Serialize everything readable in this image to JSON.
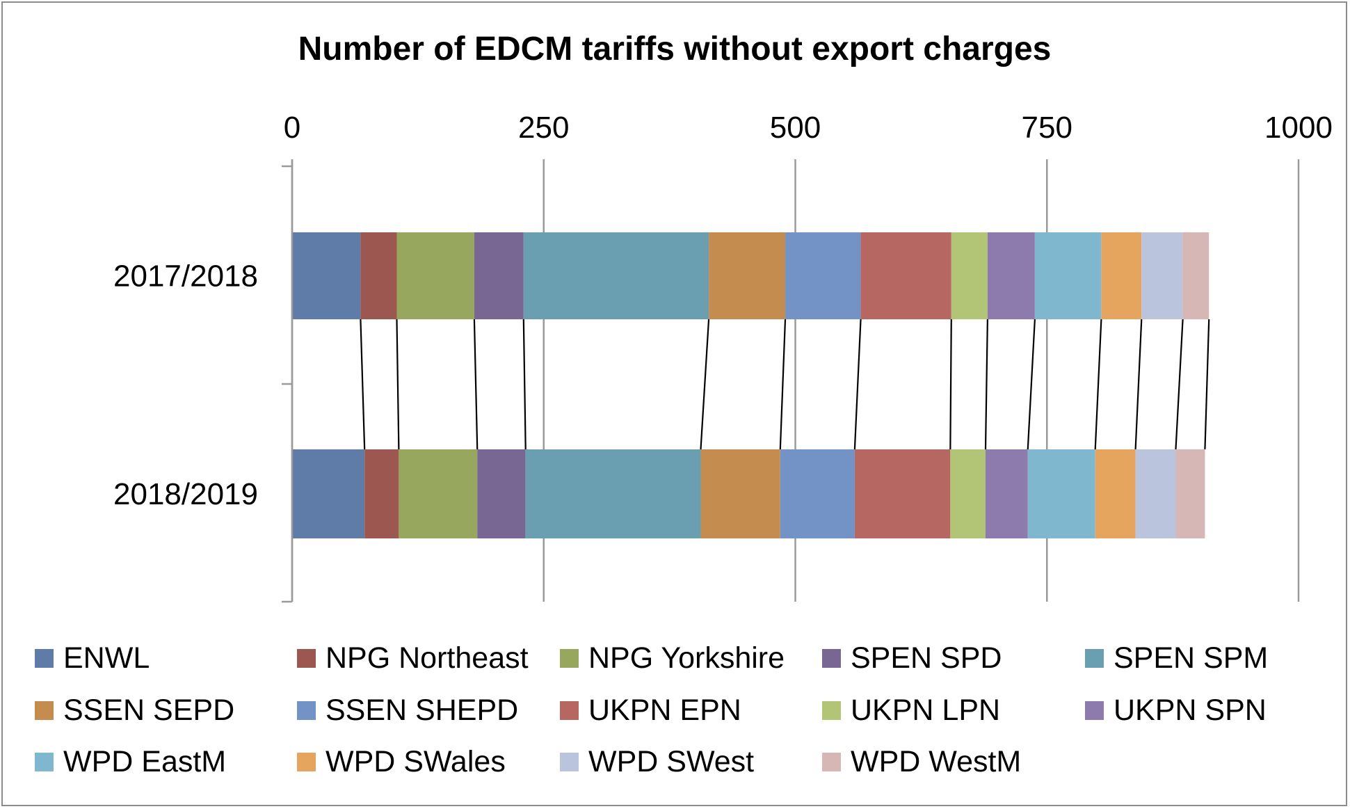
{
  "chart_data": {
    "type": "bar",
    "orientation": "horizontal",
    "stacked": true,
    "title": "Number of EDCM tariffs without export charges",
    "xlabel": "",
    "ylabel": "",
    "xlim": [
      0,
      1000
    ],
    "x_ticks": [
      "0",
      "250",
      "500",
      "750",
      "1000"
    ],
    "x_axis_position": "top",
    "grid": true,
    "series_lines": true,
    "legend_position": "bottom",
    "categories": [
      "2017/2018",
      "2018/2019"
    ],
    "series": [
      {
        "name": "ENWL",
        "color": "#5f7ba8",
        "values": [
          68,
          72
        ]
      },
      {
        "name": "NPG Northeast",
        "color": "#9c5850",
        "values": [
          36,
          34
        ]
      },
      {
        "name": "NPG Yorkshire",
        "color": "#97a75e",
        "values": [
          77,
          78
        ]
      },
      {
        "name": "SPEN SPD",
        "color": "#786792",
        "values": [
          49,
          48
        ]
      },
      {
        "name": "SPEN SPM",
        "color": "#6a9eb1",
        "values": [
          184,
          174
        ]
      },
      {
        "name": "SSEN SEPD",
        "color": "#c48c4e",
        "values": [
          76,
          79
        ]
      },
      {
        "name": "SSEN SHEPD",
        "color": "#7393c7",
        "values": [
          75,
          74
        ]
      },
      {
        "name": "UKPN EPN",
        "color": "#b66762",
        "values": [
          90,
          95
        ]
      },
      {
        "name": "UKPN LPN",
        "color": "#b2c475",
        "values": [
          36,
          35
        ]
      },
      {
        "name": "UKPN SPN",
        "color": "#8d7bae",
        "values": [
          47,
          42
        ]
      },
      {
        "name": "WPD EastM",
        "color": "#7fb8ce",
        "values": [
          66,
          67
        ]
      },
      {
        "name": "WPD SWales",
        "color": "#e5a55e",
        "values": [
          40,
          40
        ]
      },
      {
        "name": "WPD SWest",
        "color": "#bac5dd",
        "values": [
          41,
          40
        ]
      },
      {
        "name": "WPD WestM",
        "color": "#d7b7b6",
        "values": [
          26,
          29
        ]
      }
    ]
  }
}
